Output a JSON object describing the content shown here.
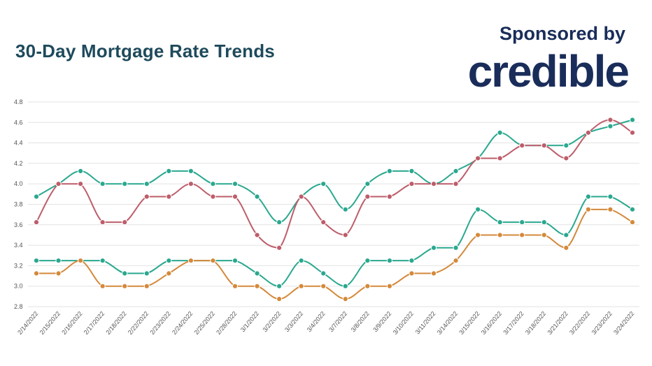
{
  "header": {
    "title": "30-Day Mortgage Rate Trends",
    "sponsor_label": "Sponsored by",
    "sponsor_logo": "credible"
  },
  "chart_data": {
    "type": "line",
    "title": "30-Day Mortgage Rate Trends",
    "xlabel": "",
    "ylabel": "",
    "ylim": [
      2.8,
      4.8
    ],
    "yticks": [
      "4.8",
      "4.6",
      "4.4",
      "4.2",
      "4.0",
      "3.8",
      "3.6",
      "3.4",
      "3.2",
      "3.0",
      "2.8"
    ],
    "grid": true,
    "legend": "none",
    "categories": [
      "2/14/2022",
      "2/15/2022",
      "2/16/2022",
      "2/17/2022",
      "2/18/2022",
      "2/22/2022",
      "2/23/2022",
      "2/24/2022",
      "2/25/2022",
      "2/28/2022",
      "3/1/2022",
      "3/2/2022",
      "3/3/2022",
      "3/4/2022",
      "3/7/2022",
      "3/8/2022",
      "3/9/2022",
      "3/10/2022",
      "3/11/2022",
      "3/14/2022",
      "3/15/2022",
      "3/16/2022",
      "3/17/2022",
      "3/18/2022",
      "3/21/2022",
      "3/22/2022",
      "3/23/2022",
      "3/24/2022"
    ],
    "series": [
      {
        "color": "#2aa88f",
        "values": [
          3.875,
          4.0,
          4.125,
          4.0,
          4.0,
          4.0,
          4.125,
          4.125,
          4.0,
          4.0,
          3.875,
          3.625,
          3.875,
          4.0,
          3.75,
          4.0,
          4.125,
          4.125,
          4.0,
          4.125,
          4.25,
          4.5,
          4.375,
          4.375,
          4.375,
          4.5,
          4.563,
          4.625
        ]
      },
      {
        "color": "#bd5d6a",
        "values": [
          3.625,
          4.0,
          4.0,
          3.625,
          3.625,
          3.875,
          3.875,
          4.0,
          3.875,
          3.875,
          3.5,
          3.375,
          3.875,
          3.625,
          3.5,
          3.875,
          3.875,
          4.0,
          4.0,
          4.0,
          4.25,
          4.25,
          4.375,
          4.375,
          4.25,
          4.5,
          4.625,
          4.5
        ]
      },
      {
        "color": "#2aa88f",
        "values": [
          3.25,
          3.25,
          3.25,
          3.25,
          3.125,
          3.125,
          3.25,
          3.25,
          3.25,
          3.25,
          3.125,
          3.0,
          3.25,
          3.125,
          3.0,
          3.25,
          3.25,
          3.25,
          3.375,
          3.375,
          3.75,
          3.625,
          3.625,
          3.625,
          3.5,
          3.875,
          3.875,
          3.75
        ]
      },
      {
        "color": "#d4893a",
        "values": [
          3.125,
          3.125,
          3.25,
          3.0,
          3.0,
          3.0,
          3.125,
          3.25,
          3.25,
          3.0,
          3.0,
          2.875,
          3.0,
          3.0,
          2.875,
          3.0,
          3.0,
          3.125,
          3.125,
          3.25,
          3.5,
          3.5,
          3.5,
          3.5,
          3.375,
          3.75,
          3.75,
          3.625
        ]
      }
    ]
  }
}
